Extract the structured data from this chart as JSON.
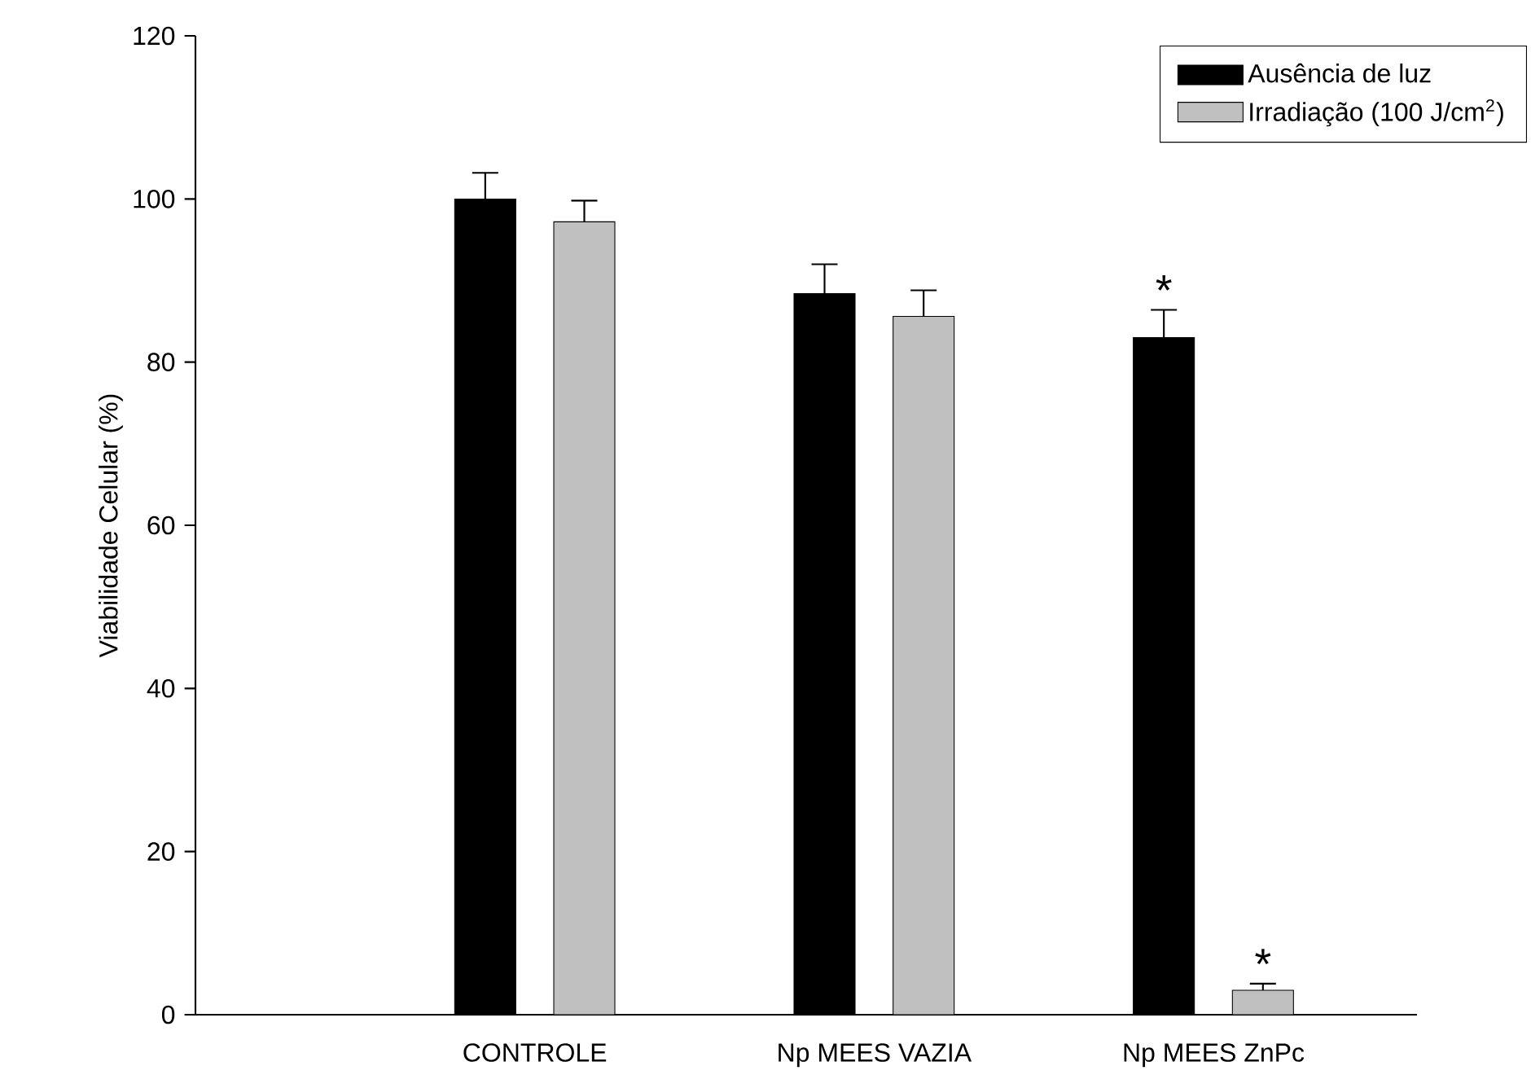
{
  "chart_data": {
    "type": "bar",
    "ylabel": "Viabilidade Celular (%)",
    "categories": [
      "CONTROLE",
      "Np MEES VAZIA",
      "Np MEES ZnPc"
    ],
    "series": [
      {
        "name": "Ausência de luz",
        "color": "#000000",
        "values": [
          100,
          88.4,
          83.0
        ],
        "errors": [
          [
            100,
            103.2
          ],
          [
            88.4,
            92.0
          ],
          [
            83.0,
            86.4
          ]
        ]
      },
      {
        "name": "Irradiação (100 J/cm$^{2}$)",
        "color": "#c0c0c0",
        "values": [
          97.2,
          85.6,
          3.0
        ],
        "errors": [
          [
            97.2,
            99.8
          ],
          [
            85.6,
            88.8
          ],
          [
            3.0,
            3.8
          ]
        ]
      }
    ],
    "ylim": [
      0,
      120
    ],
    "yticks": [
      0,
      20,
      40,
      60,
      80,
      100,
      120
    ],
    "legend": "top right",
    "grid": false,
    "annotations": [
      "*",
      "*"
    ]
  }
}
